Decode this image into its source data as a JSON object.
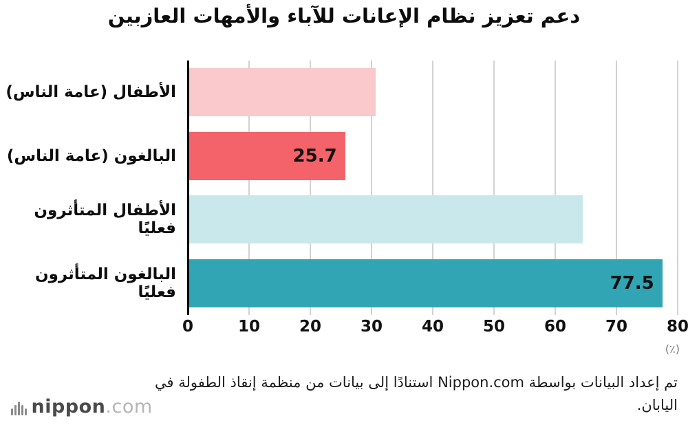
{
  "title": "دعم تعزيز نظام الإعانات للآباء والأمهات العازبين",
  "chart_data": {
    "type": "bar",
    "orientation": "horizontal",
    "categories": [
      "الأطفال (عامة الناس)",
      "البالغون (عامة الناس)",
      "الأطفال المتأثرون فعليًا",
      "البالغون المتأثرون فعليًا"
    ],
    "values": [
      30.7,
      25.7,
      64.5,
      77.5
    ],
    "value_labels": [
      "",
      "25.7",
      "",
      "77.5"
    ],
    "colors": [
      "#f9c9cb",
      "#f4636a",
      "#c8e8ec",
      "#31a5b4"
    ],
    "xlim": [
      0,
      80
    ],
    "xticks": [
      0,
      10,
      20,
      30,
      40,
      50,
      60,
      70,
      80
    ],
    "unit_label": "(٪)",
    "grid": true,
    "legend": "none"
  },
  "footer": {
    "source_text": "تم إعداد البيانات بواسطة Nippon.com استنادًا إلى بيانات من منظمة إنقاذ الطفولة في اليابان.",
    "logo_main": "nippon",
    "logo_suffix": ".com"
  }
}
